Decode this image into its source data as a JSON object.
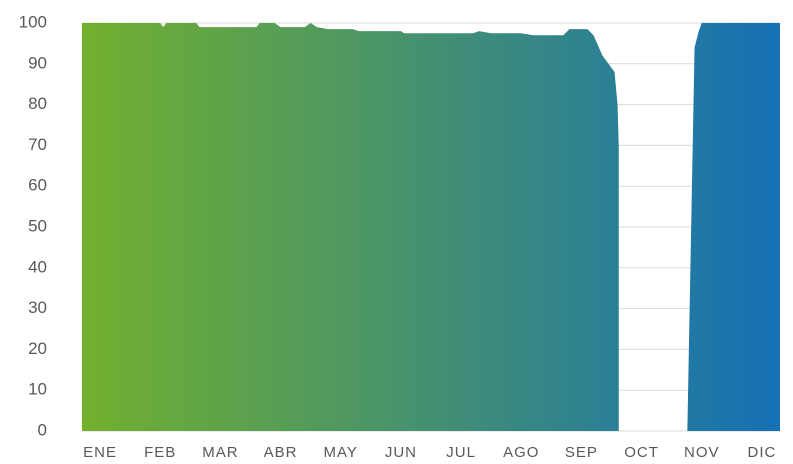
{
  "chart_data": {
    "type": "area",
    "x": [
      -0.3,
      1.0,
      1.05,
      1.1,
      1.6,
      1.65,
      2.6,
      2.65,
      2.9,
      3.0,
      3.4,
      3.5,
      3.6,
      3.8,
      4.2,
      4.3,
      5.0,
      5.05,
      6.0,
      6.2,
      6.3,
      6.5,
      7.0,
      7.2,
      7.7,
      7.8,
      8.1,
      8.2,
      8.35,
      8.55,
      8.6,
      8.62,
      9.2,
      9.76,
      9.88,
      9.95,
      10.0,
      11.3
    ],
    "series": [
      {
        "color": [
          "#72b02e",
          "#1570b5"
        ],
        "values": [
          100,
          100,
          99,
          100,
          100,
          99,
          99,
          100,
          100,
          99,
          99,
          100,
          99,
          98.5,
          98.5,
          98,
          98,
          97.5,
          97.5,
          97.5,
          98,
          97.5,
          97.5,
          97,
          97,
          98.5,
          98.5,
          97,
          92,
          88,
          80,
          70,
          null,
          0,
          94,
          98,
          100,
          100
        ]
      }
    ],
    "xlim": [
      -0.3,
      11.3
    ],
    "xticks": [
      {
        "value": 0,
        "label": "ENE"
      },
      {
        "value": 1,
        "label": "FEB"
      },
      {
        "value": 2,
        "label": "MAR"
      },
      {
        "value": 3,
        "label": "ABR"
      },
      {
        "value": 4,
        "label": "MAY"
      },
      {
        "value": 5,
        "label": "JUN"
      },
      {
        "value": 6,
        "label": "JUL"
      },
      {
        "value": 7,
        "label": "AGO"
      },
      {
        "value": 8,
        "label": "SEP"
      },
      {
        "value": 9,
        "label": "OCT"
      },
      {
        "value": 10,
        "label": "NOV"
      },
      {
        "value": 11,
        "label": "DIC"
      }
    ],
    "ylim": [
      0,
      100
    ],
    "yticks": [
      0,
      10,
      20,
      30,
      40,
      50,
      60,
      70,
      80,
      90,
      100
    ],
    "grid": true
  }
}
